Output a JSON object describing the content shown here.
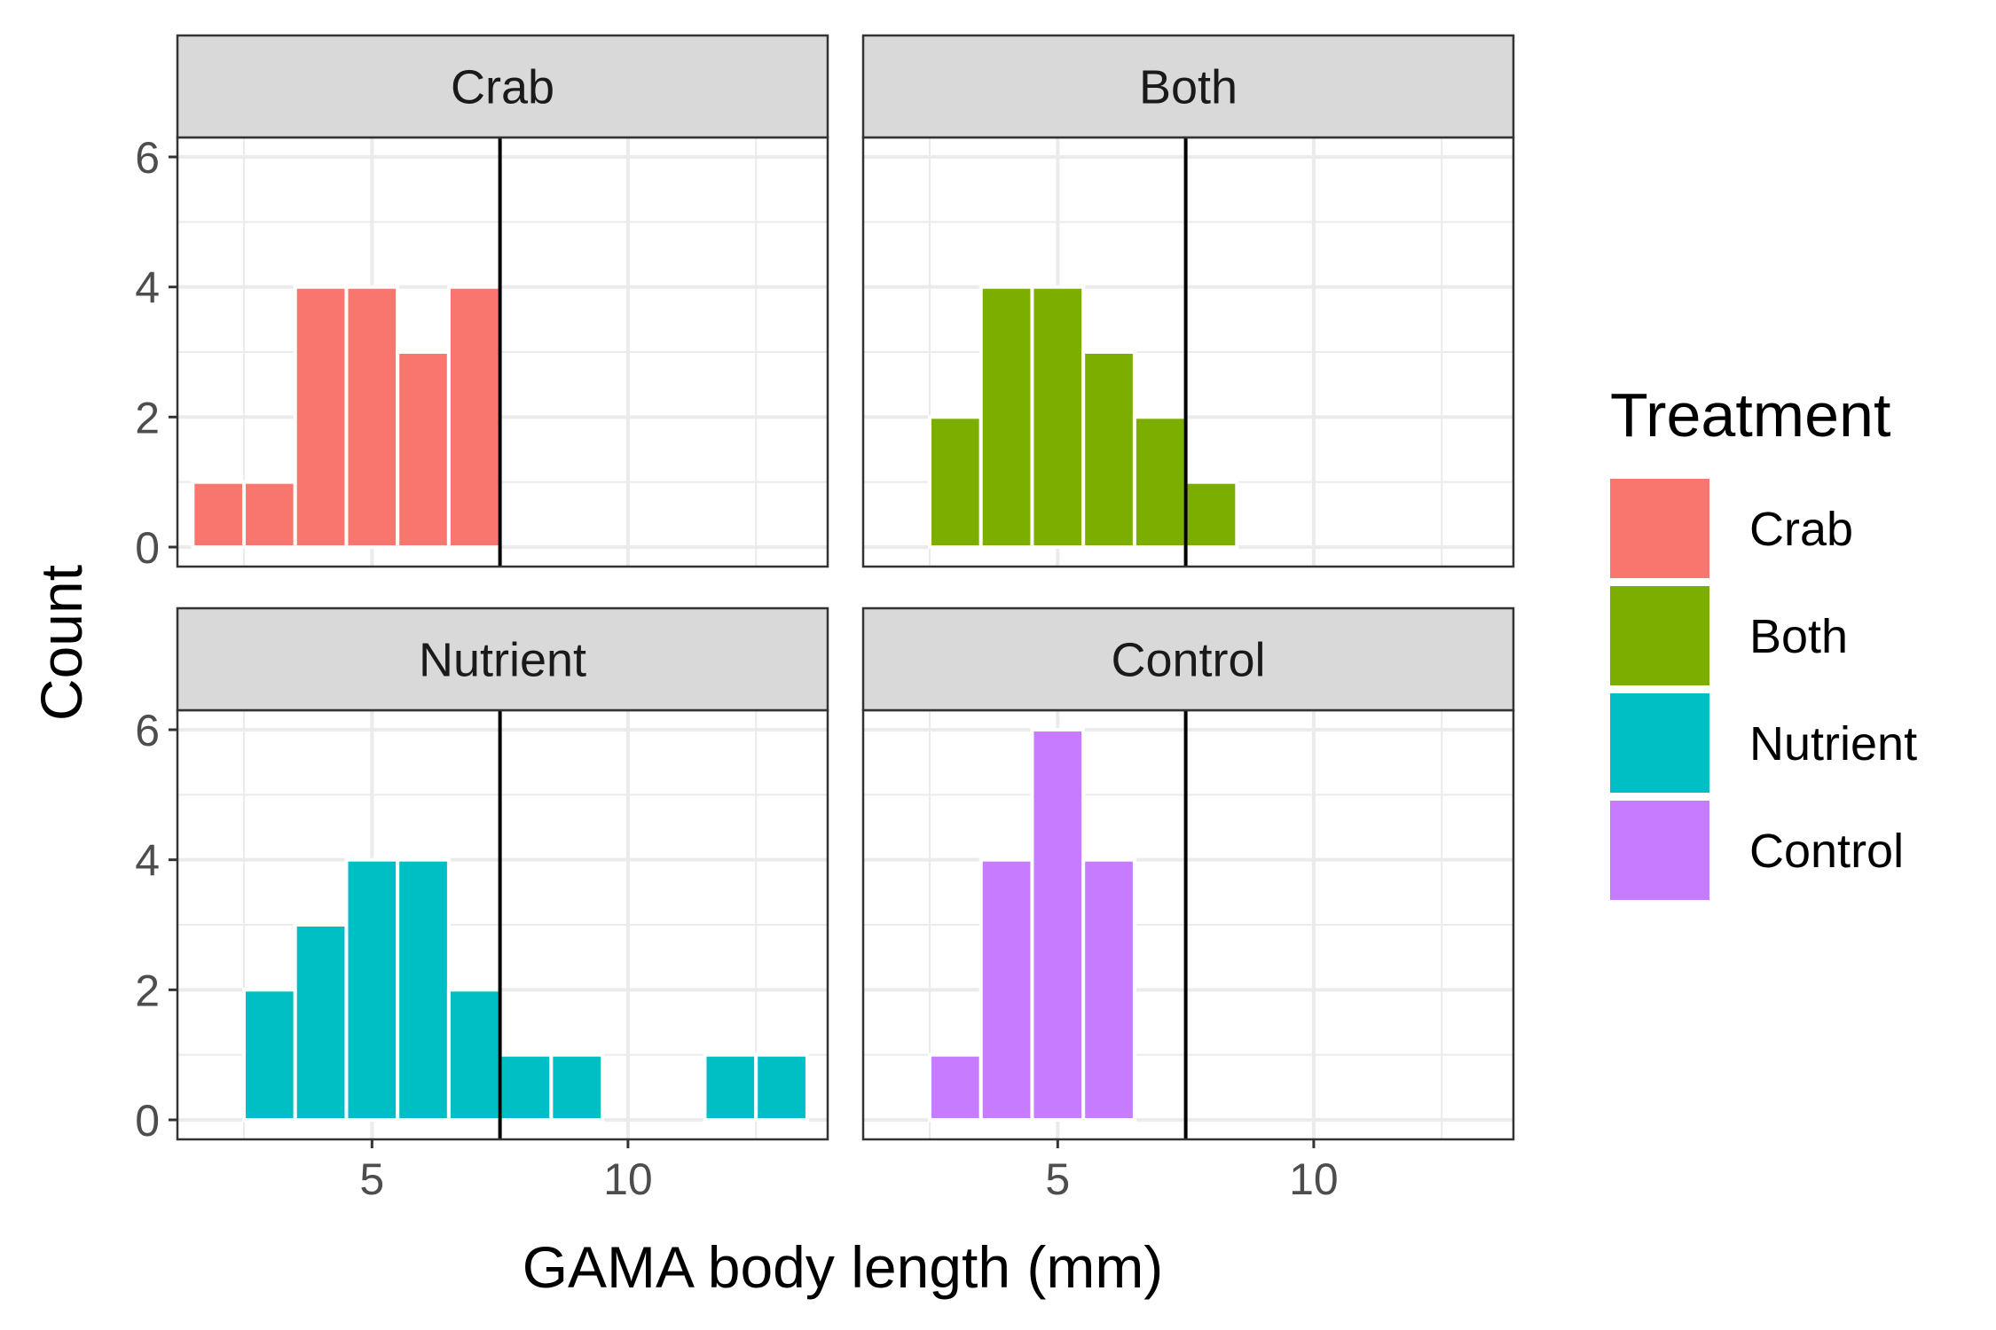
{
  "chart_data": {
    "type": "bar",
    "xlabel": "GAMA body length (mm)",
    "ylabel": "Count",
    "xlim": [
      1.2,
      13.9
    ],
    "ylim": [
      -0.3,
      6.3
    ],
    "x_ticks": [
      5,
      10
    ],
    "y_ticks": [
      0,
      2,
      4,
      6
    ],
    "bin_width": 1,
    "reference_line_x": 7.5,
    "grid": true,
    "legend": {
      "title": "Treatment",
      "position": "right",
      "entries": [
        {
          "label": "Crab",
          "color": "#F8766D"
        },
        {
          "label": "Both",
          "color": "#7CAE00"
        },
        {
          "label": "Nutrient",
          "color": "#00BFC4"
        },
        {
          "label": "Control",
          "color": "#C77CFF"
        }
      ]
    },
    "panels": [
      {
        "name": "Crab",
        "color": "#F8766D",
        "x": [
          2,
          3,
          4,
          5,
          6,
          7
        ],
        "values": [
          1,
          1,
          4,
          4,
          3,
          4
        ]
      },
      {
        "name": "Both",
        "color": "#7CAE00",
        "x": [
          3,
          4,
          5,
          6,
          7,
          8
        ],
        "values": [
          2,
          4,
          4,
          3,
          2,
          1
        ]
      },
      {
        "name": "Nutrient",
        "color": "#00BFC4",
        "x": [
          3,
          4,
          5,
          6,
          7,
          8,
          9,
          12,
          13
        ],
        "values": [
          2,
          3,
          4,
          4,
          2,
          1,
          1,
          1,
          1
        ]
      },
      {
        "name": "Control",
        "color": "#C77CFF",
        "x": [
          3,
          4,
          5,
          6
        ],
        "values": [
          1,
          4,
          6,
          4
        ]
      }
    ]
  }
}
